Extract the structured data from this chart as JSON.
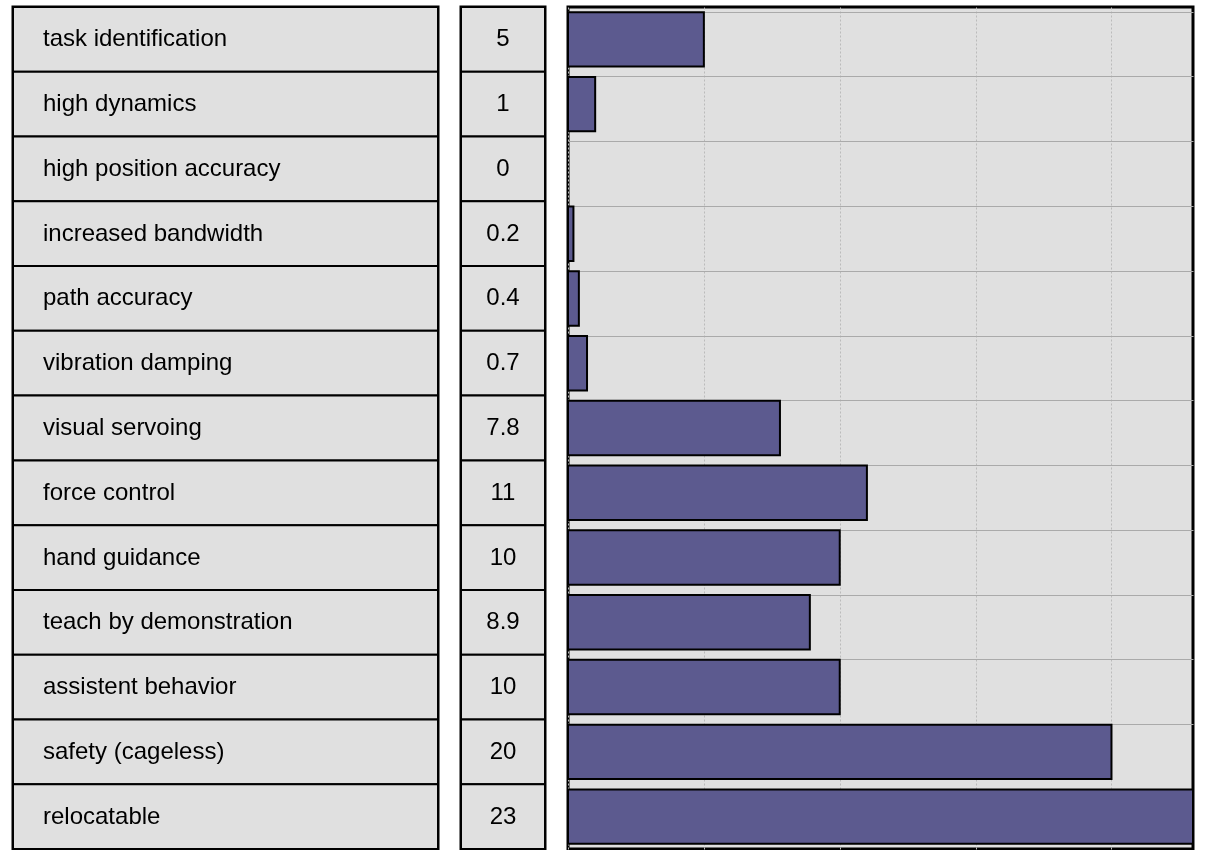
{
  "chart_data": {
    "type": "bar",
    "orientation": "horizontal",
    "categories": [
      "task identification",
      "high dynamics",
      "high position accuracy",
      "increased bandwidth",
      "path accuracy",
      "vibration damping",
      "visual servoing",
      "force control",
      "hand guidance",
      "teach by demonstration",
      "assistent behavior",
      "safety (cageless)",
      "relocatable"
    ],
    "values": [
      5,
      1,
      0,
      0.2,
      0.4,
      0.7,
      7.8,
      11,
      10,
      8.9,
      10,
      20,
      23
    ],
    "color": "#5c5a8f",
    "xlim": [
      0,
      23
    ],
    "xticks": [
      {
        "value": 0,
        "label": null
      },
      {
        "value": 5,
        "label": null
      },
      {
        "value": 10,
        "label": null
      },
      {
        "value": 15,
        "label": null
      },
      {
        "value": 20,
        "label": null
      }
    ],
    "tick_labels": "y",
    "grid": true,
    "data_labels": true
  }
}
